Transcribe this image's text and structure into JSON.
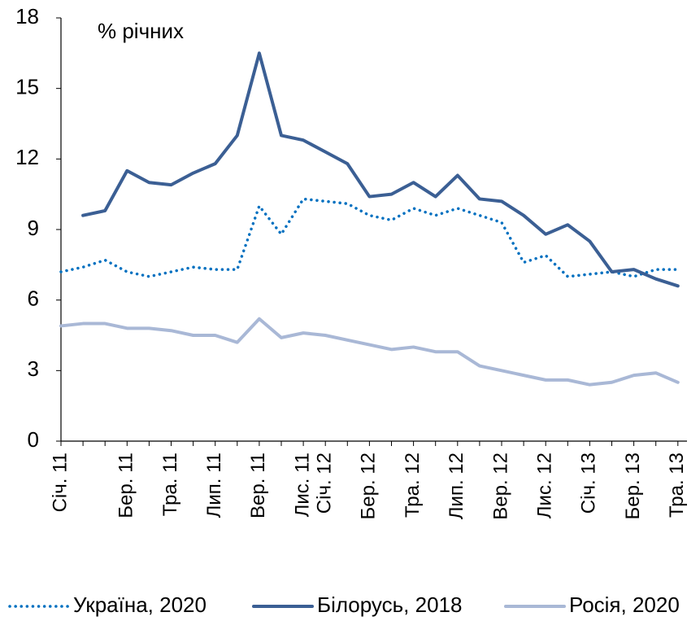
{
  "chart_data": {
    "type": "line",
    "title": "% річних",
    "categories": [
      "Січ. 11",
      null,
      null,
      "Бер. 11",
      null,
      "Тра. 11",
      null,
      "Лип. 11",
      null,
      "Вер. 11",
      null,
      "Лис. 11",
      "Січ. 12",
      null,
      "Бер. 12",
      null,
      "Тра. 12",
      null,
      "Лип. 12",
      null,
      "Вер. 12",
      null,
      "Лис. 12",
      null,
      "Січ. 13",
      null,
      "Бер. 13",
      null,
      "Тра. 13"
    ],
    "series": [
      {
        "name": "Україна, 2020",
        "color": "#0070c0",
        "style": "dotted",
        "values": [
          7.2,
          7.4,
          7.7,
          7.2,
          7.0,
          7.2,
          7.4,
          7.3,
          7.3,
          10.0,
          8.8,
          10.3,
          10.2,
          10.1,
          9.6,
          9.4,
          9.9,
          9.6,
          9.9,
          9.6,
          9.3,
          7.6,
          7.9,
          7.0,
          7.1,
          7.2,
          7.0,
          7.3,
          7.3
        ]
      },
      {
        "name": "Білорусь, 2018",
        "color": "#3b5f94",
        "style": "solid",
        "values": [
          null,
          9.6,
          9.8,
          11.5,
          11.0,
          10.9,
          11.4,
          11.8,
          13.0,
          16.5,
          13.0,
          12.8,
          12.3,
          11.8,
          10.4,
          10.5,
          11.0,
          10.4,
          11.3,
          10.3,
          10.2,
          9.6,
          8.8,
          9.2,
          8.5,
          7.2,
          7.3,
          6.9,
          6.6
        ]
      },
      {
        "name": "Росія, 2020",
        "color": "#a9b8d6",
        "style": "solid",
        "values": [
          4.9,
          5.0,
          5.0,
          4.8,
          4.8,
          4.7,
          4.5,
          4.5,
          4.2,
          5.2,
          4.4,
          4.6,
          4.5,
          4.3,
          4.1,
          3.9,
          4.0,
          3.8,
          3.8,
          3.2,
          3.0,
          2.8,
          2.6,
          2.6,
          2.4,
          2.5,
          2.8,
          2.9,
          2.5
        ]
      }
    ],
    "ylim": [
      0,
      18
    ],
    "yticks": [
      0,
      3,
      6,
      9,
      12,
      15,
      18
    ],
    "grid": false,
    "legend": "bottom"
  }
}
